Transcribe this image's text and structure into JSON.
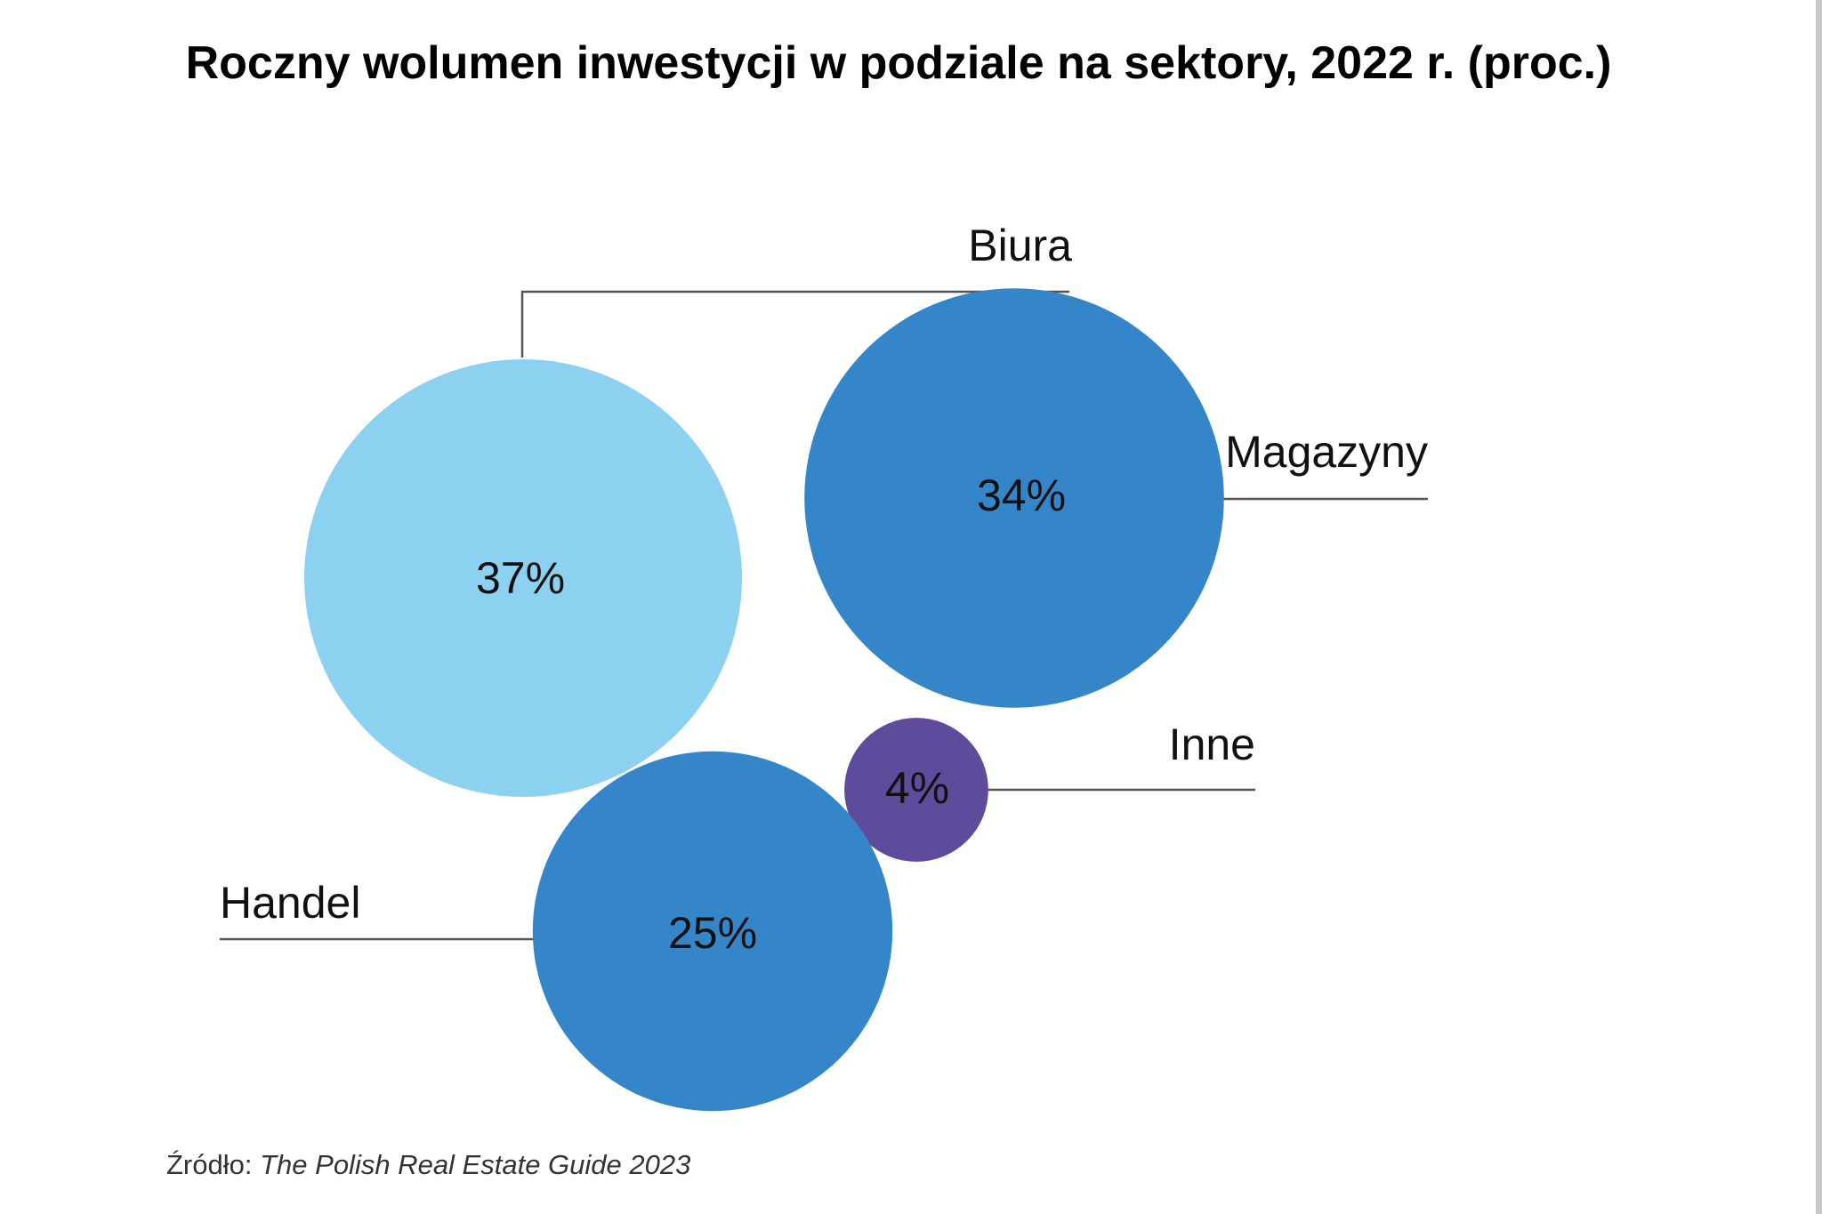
{
  "chart_data": {
    "type": "bubble",
    "title": "Roczny wolumen inwestycji w podziale na sektory, 2022 r. (proc.)",
    "unit": "%",
    "series": [
      {
        "name": "Biura",
        "value": 37,
        "label": "37%",
        "color": "#8dd1f0"
      },
      {
        "name": "Magazyny",
        "value": 34,
        "label": "34%",
        "color": "#3586c8"
      },
      {
        "name": "Inne",
        "value": 4,
        "label": "4%",
        "color": "#5f4b9b"
      },
      {
        "name": "Handel",
        "value": 25,
        "label": "25%",
        "color": "#3586c8"
      }
    ],
    "source_prefix": "Źródło:",
    "source_title": "The Polish Real Estate Guide 2023"
  }
}
